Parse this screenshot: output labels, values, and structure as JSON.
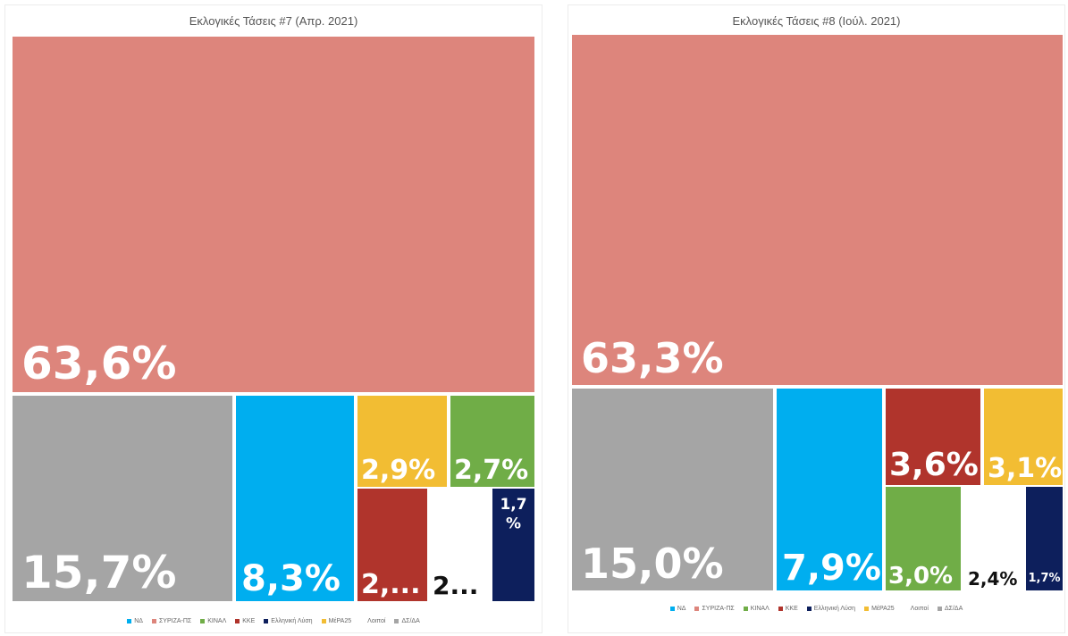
{
  "chart_data": [
    {
      "type": "treemap",
      "title": "Εκλογικές Τάσεις #7 (Απρ. 2021)",
      "segments": [
        {
          "name": "ΣΥΡΙΖΑ-ΠΣ",
          "value": 63.6,
          "label": "63,6%",
          "color": "#dd857c",
          "text_color": "#ffffff"
        },
        {
          "name": "ΔΣ/ΔΑ",
          "value": 15.7,
          "label": "15,7%",
          "color": "#a5a5a5",
          "text_color": "#ffffff"
        },
        {
          "name": "ΝΔ",
          "value": 8.3,
          "label": "8,3%",
          "color": "#00aeef",
          "text_color": "#ffffff"
        },
        {
          "name": "ΜέΡΑ25",
          "value": 2.9,
          "label": "2,9%",
          "color": "#f2bd33",
          "text_color": "#ffffff"
        },
        {
          "name": "ΚΙΝΑΛ",
          "value": 2.7,
          "label": "2,7%",
          "color": "#70ad47",
          "text_color": "#ffffff"
        },
        {
          "name": "ΚΚΕ",
          "value": 2.5,
          "label": "2,...",
          "color": "#b0342c",
          "text_color": "#ffffff"
        },
        {
          "name": "Λοιποί",
          "value": 2.3,
          "label": "2...",
          "color": "#ffffff",
          "text_color": "#111111"
        },
        {
          "name": "Ελληνική Λύση",
          "value": 1.7,
          "label": "1,7 %",
          "color": "#0d1f5c",
          "text_color": "#ffffff"
        }
      ]
    },
    {
      "type": "treemap",
      "title": "Εκλογικές Τάσεις #8 (Ιούλ. 2021)",
      "segments": [
        {
          "name": "ΣΥΡΙΖΑ-ΠΣ",
          "value": 63.3,
          "label": "63,3%",
          "color": "#dd857c",
          "text_color": "#ffffff"
        },
        {
          "name": "ΔΣ/ΔΑ",
          "value": 15.0,
          "label": "15,0%",
          "color": "#a5a5a5",
          "text_color": "#ffffff"
        },
        {
          "name": "ΝΔ",
          "value": 7.9,
          "label": "7,9%",
          "color": "#00aeef",
          "text_color": "#ffffff"
        },
        {
          "name": "ΚΚΕ",
          "value": 3.6,
          "label": "3,6%",
          "color": "#b0342c",
          "text_color": "#ffffff"
        },
        {
          "name": "ΜέΡΑ25",
          "value": 3.1,
          "label": "3,1%",
          "color": "#f2bd33",
          "text_color": "#ffffff"
        },
        {
          "name": "ΚΙΝΑΛ",
          "value": 3.0,
          "label": "3,0%",
          "color": "#70ad47",
          "text_color": "#ffffff"
        },
        {
          "name": "Λοιποί",
          "value": 2.4,
          "label": "2,4%",
          "color": "#ffffff",
          "text_color": "#111111"
        },
        {
          "name": "Ελληνική Λύση",
          "value": 1.7,
          "label": "1,7%",
          "color": "#0d1f5c",
          "text_color": "#ffffff"
        }
      ]
    }
  ],
  "legend": [
    {
      "name": "ΝΔ",
      "color": "#00aeef"
    },
    {
      "name": "ΣΥΡΙΖΑ-ΠΣ",
      "color": "#dd857c"
    },
    {
      "name": "ΚΙΝΑΛ",
      "color": "#70ad47"
    },
    {
      "name": "ΚΚΕ",
      "color": "#b0342c"
    },
    {
      "name": "Ελληνική Λύση",
      "color": "#0d1f5c"
    },
    {
      "name": "ΜέΡΑ25",
      "color": "#f2bd33"
    },
    {
      "name": "Λοιποί",
      "color": "#ffffff"
    },
    {
      "name": "ΔΣ/ΔΑ",
      "color": "#a5a5a5"
    }
  ]
}
